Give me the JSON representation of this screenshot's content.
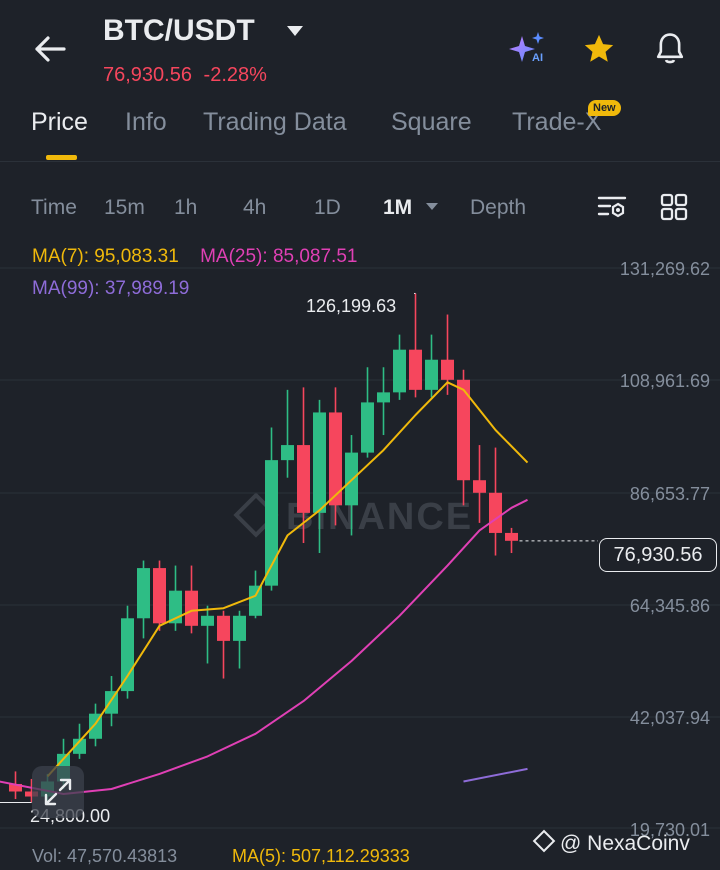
{
  "header": {
    "pair": "BTC/USDT",
    "last_price": "76,930.56",
    "change": "-2.28%",
    "ai_badge": "AI"
  },
  "tabs": [
    {
      "label": "Price"
    },
    {
      "label": "Info"
    },
    {
      "label": "Trading Data"
    },
    {
      "label": "Square"
    },
    {
      "label": "Trade-X"
    }
  ],
  "new_badge": "New",
  "intervals": [
    {
      "label": "Time"
    },
    {
      "label": "15m"
    },
    {
      "label": "1h"
    },
    {
      "label": "4h"
    },
    {
      "label": "1D"
    },
    {
      "label": "1M"
    },
    {
      "label": "Depth"
    }
  ],
  "indicators": {
    "ma7": "MA(7): 95,083.31",
    "ma25": "MA(25): 85,087.51",
    "ma99": "MA(99): 37,989.19"
  },
  "chart_data": {
    "type": "candlestick",
    "price_axis": [
      "131,269.62",
      "108,961.69",
      "86,653.77",
      "64,345.86",
      "42,037.94",
      "19,730.01"
    ],
    "y_range": [
      19730.01,
      131269.62
    ],
    "high_label": "126,199.63",
    "low_label": "24,800.00",
    "last_price_label": "76,930.56",
    "colors": {
      "up": "#2ebd85",
      "down": "#f6465d",
      "ma7": "#f0b90b",
      "ma25": "#e040b5",
      "ma99": "#8e6cd8"
    },
    "candles": [
      [
        28500,
        27000,
        31000,
        25500
      ],
      [
        27000,
        26000,
        29500,
        24800
      ],
      [
        26000,
        29000,
        30500,
        25000
      ],
      [
        29000,
        34500,
        37500,
        27500
      ],
      [
        34500,
        37500,
        40500,
        33500
      ],
      [
        37500,
        42500,
        44500,
        36000
      ],
      [
        42500,
        47000,
        50000,
        40000
      ],
      [
        47000,
        61500,
        64000,
        45500
      ],
      [
        61500,
        71500,
        73000,
        57500
      ],
      [
        71500,
        60500,
        73000,
        59000
      ],
      [
        60500,
        67000,
        72000,
        59000
      ],
      [
        67000,
        60000,
        72000,
        58500
      ],
      [
        60000,
        62000,
        64000,
        52500
      ],
      [
        62000,
        57000,
        63000,
        49500
      ],
      [
        57000,
        62000,
        63000,
        51500
      ],
      [
        62000,
        68000,
        71000,
        61500
      ],
      [
        68000,
        93000,
        99500,
        67000
      ],
      [
        93000,
        96000,
        107000,
        89500
      ],
      [
        96000,
        82500,
        107500,
        76500
      ],
      [
        82500,
        102500,
        105000,
        74500
      ],
      [
        102500,
        84000,
        107500,
        80000
      ],
      [
        84000,
        94500,
        98000,
        78000
      ],
      [
        94500,
        104500,
        111500,
        93500
      ],
      [
        104500,
        106500,
        111500,
        98000
      ],
      [
        106500,
        115000,
        118000,
        105000
      ],
      [
        115000,
        107000,
        126199.63,
        105500
      ],
      [
        107000,
        113000,
        118000,
        105500
      ],
      [
        113000,
        109000,
        122000,
        106000
      ],
      [
        109000,
        89000,
        111000,
        84000
      ],
      [
        89000,
        86500,
        96000,
        80500
      ],
      [
        86500,
        78500,
        95500,
        74000
      ],
      [
        78500,
        76930.56,
        79500,
        74500
      ]
    ],
    "ma7_points": [
      [
        2,
        30000
      ],
      [
        5,
        40500
      ],
      [
        7,
        50000
      ],
      [
        9,
        60000
      ],
      [
        11,
        63000
      ],
      [
        13,
        63500
      ],
      [
        15,
        66000
      ],
      [
        17,
        78000
      ],
      [
        19,
        83000
      ],
      [
        21,
        89000
      ],
      [
        23,
        95000
      ],
      [
        25,
        102000
      ],
      [
        27,
        108500
      ],
      [
        28,
        107000
      ],
      [
        30,
        99000
      ],
      [
        32,
        92500
      ]
    ],
    "ma25_points": [
      [
        -1,
        29000
      ],
      [
        3,
        26500
      ],
      [
        6,
        27500
      ],
      [
        9,
        30500
      ],
      [
        12,
        34000
      ],
      [
        15,
        38500
      ],
      [
        18,
        45000
      ],
      [
        21,
        53000
      ],
      [
        24,
        62000
      ],
      [
        27,
        72000
      ],
      [
        29,
        79000
      ],
      [
        31,
        83500
      ],
      [
        32,
        85100
      ]
    ],
    "ma99_points": [
      [
        28,
        29000
      ],
      [
        32,
        31500
      ]
    ]
  },
  "footer": {
    "volume": "Vol: 47,570.43813",
    "ma5": "MA(5): 507,112.29333",
    "credit": "@ NexaCoinv"
  },
  "watermark": "BINANCE"
}
